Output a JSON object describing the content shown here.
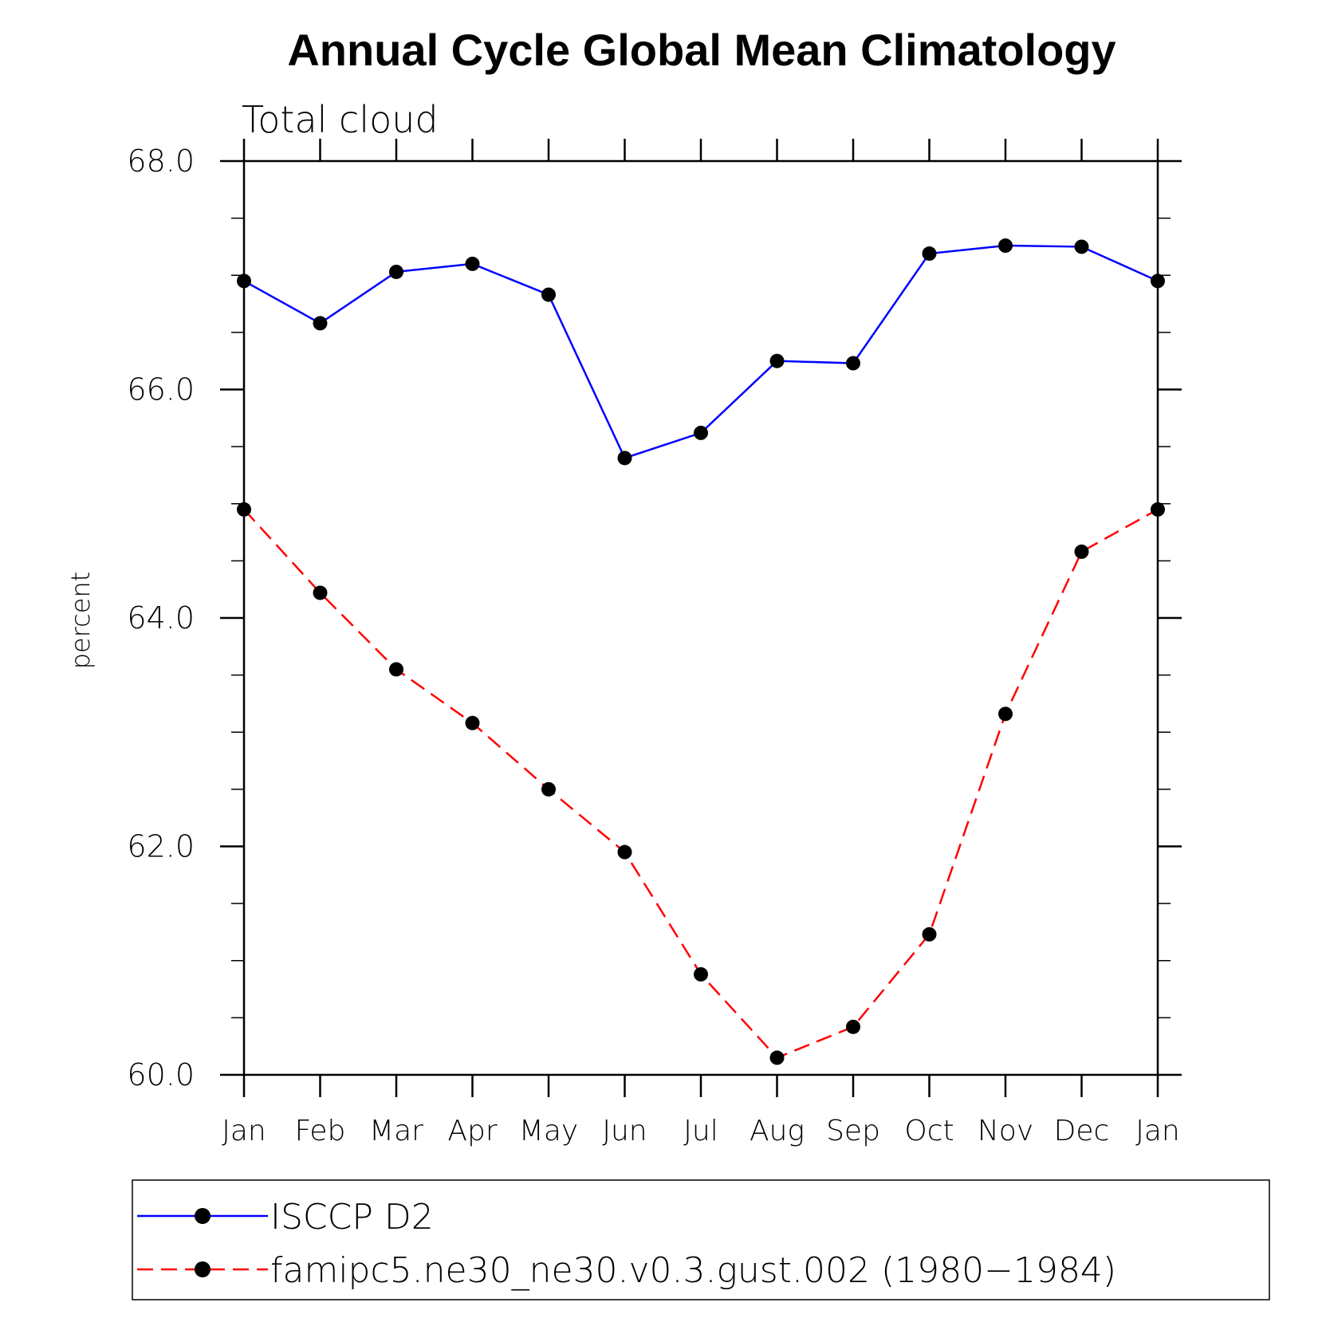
{
  "chart_data": {
    "type": "line",
    "title": "Annual Cycle Global Mean Climatology",
    "subtitle": "Total cloud",
    "xlabel": "",
    "ylabel": "percent",
    "categories": [
      "Jan",
      "Feb",
      "Mar",
      "Apr",
      "May",
      "Jun",
      "Jul",
      "Aug",
      "Sep",
      "Oct",
      "Nov",
      "Dec",
      "Jan"
    ],
    "ylim": [
      60.0,
      68.0
    ],
    "yticks": [
      "60.0",
      "62.0",
      "64.0",
      "66.0",
      "68.0"
    ],
    "yminor_step": 0.5,
    "legend_position": "bottom",
    "series": [
      {
        "name": "ISCCP D2",
        "color": "#0000ff",
        "style": "solid",
        "values": [
          66.95,
          66.58,
          67.03,
          67.1,
          66.83,
          65.4,
          65.62,
          66.25,
          66.23,
          67.19,
          67.26,
          67.25,
          66.95
        ]
      },
      {
        "name": "famipc5.ne30_ne30.v0.3.gust.002 (1980−1984)",
        "color": "#ff0000",
        "style": "dashed",
        "values": [
          64.95,
          64.22,
          63.55,
          63.08,
          62.5,
          61.95,
          60.88,
          60.15,
          60.42,
          61.23,
          63.16,
          64.58,
          64.95
        ]
      }
    ]
  }
}
